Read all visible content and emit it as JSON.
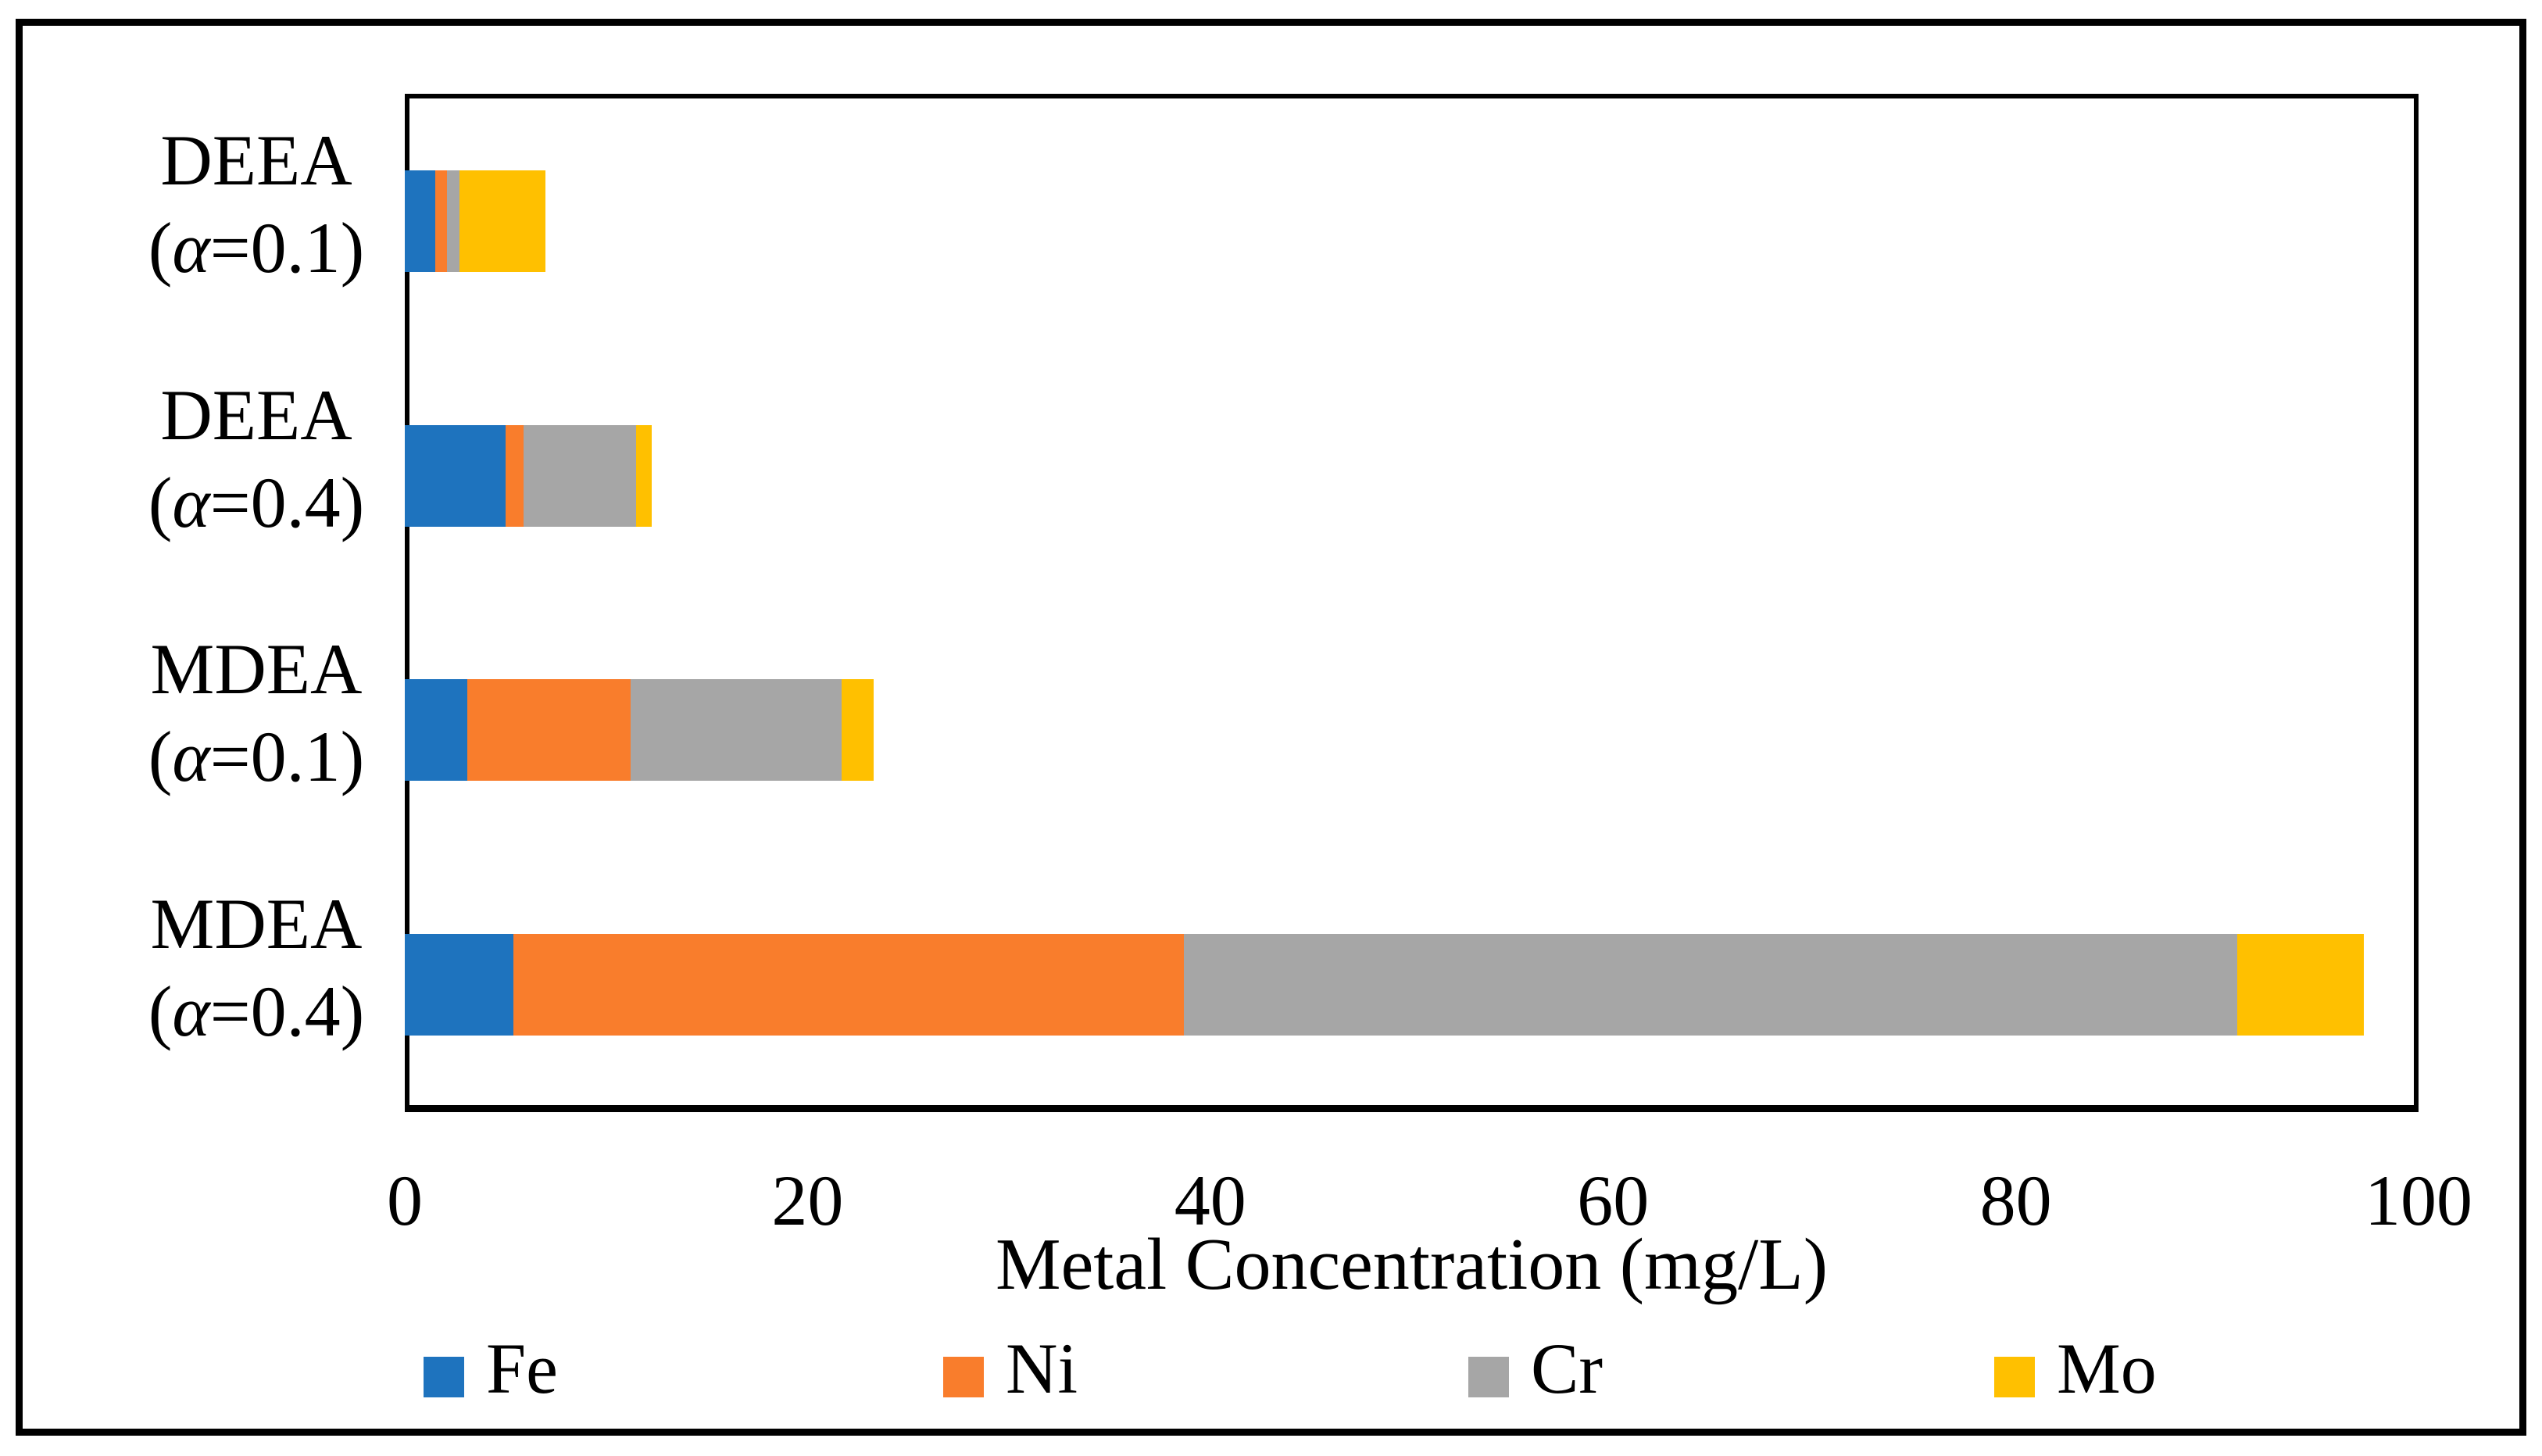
{
  "figure": {
    "background": "#ffffff",
    "border_color": "#000000"
  },
  "chart_data": {
    "type": "bar",
    "orientation": "horizontal",
    "stacked": true,
    "title": "",
    "xlabel": "Metal Concentration (mg/L)",
    "ylabel": "",
    "xlim": [
      0,
      100
    ],
    "xticks": [
      0,
      20,
      40,
      60,
      80,
      100
    ],
    "grid": false,
    "legend_position": "bottom",
    "categories": [
      {
        "id": "deea-a01",
        "line1": "DEEA",
        "line2": "(α=0.1)"
      },
      {
        "id": "deea-a04",
        "line1": "DEEA",
        "line2": "(α=0.4)"
      },
      {
        "id": "mdea-a01",
        "line1": "MDEA",
        "line2": "(α=0.1)"
      },
      {
        "id": "mdea-a04",
        "line1": "MDEA",
        "line2": "(α=0.4)"
      }
    ],
    "series": [
      {
        "name": "Fe",
        "color": "#1E73BE",
        "values": [
          1.5,
          5.0,
          3.1,
          5.4
        ]
      },
      {
        "name": "Ni",
        "color": "#F97D2C",
        "values": [
          0.6,
          0.9,
          8.1,
          33.3
        ]
      },
      {
        "name": "Cr",
        "color": "#A6A6A6",
        "values": [
          0.6,
          5.6,
          10.5,
          52.3
        ]
      },
      {
        "name": "Mo",
        "color": "#FFC000",
        "values": [
          4.3,
          0.75,
          1.6,
          6.3
        ]
      }
    ]
  }
}
